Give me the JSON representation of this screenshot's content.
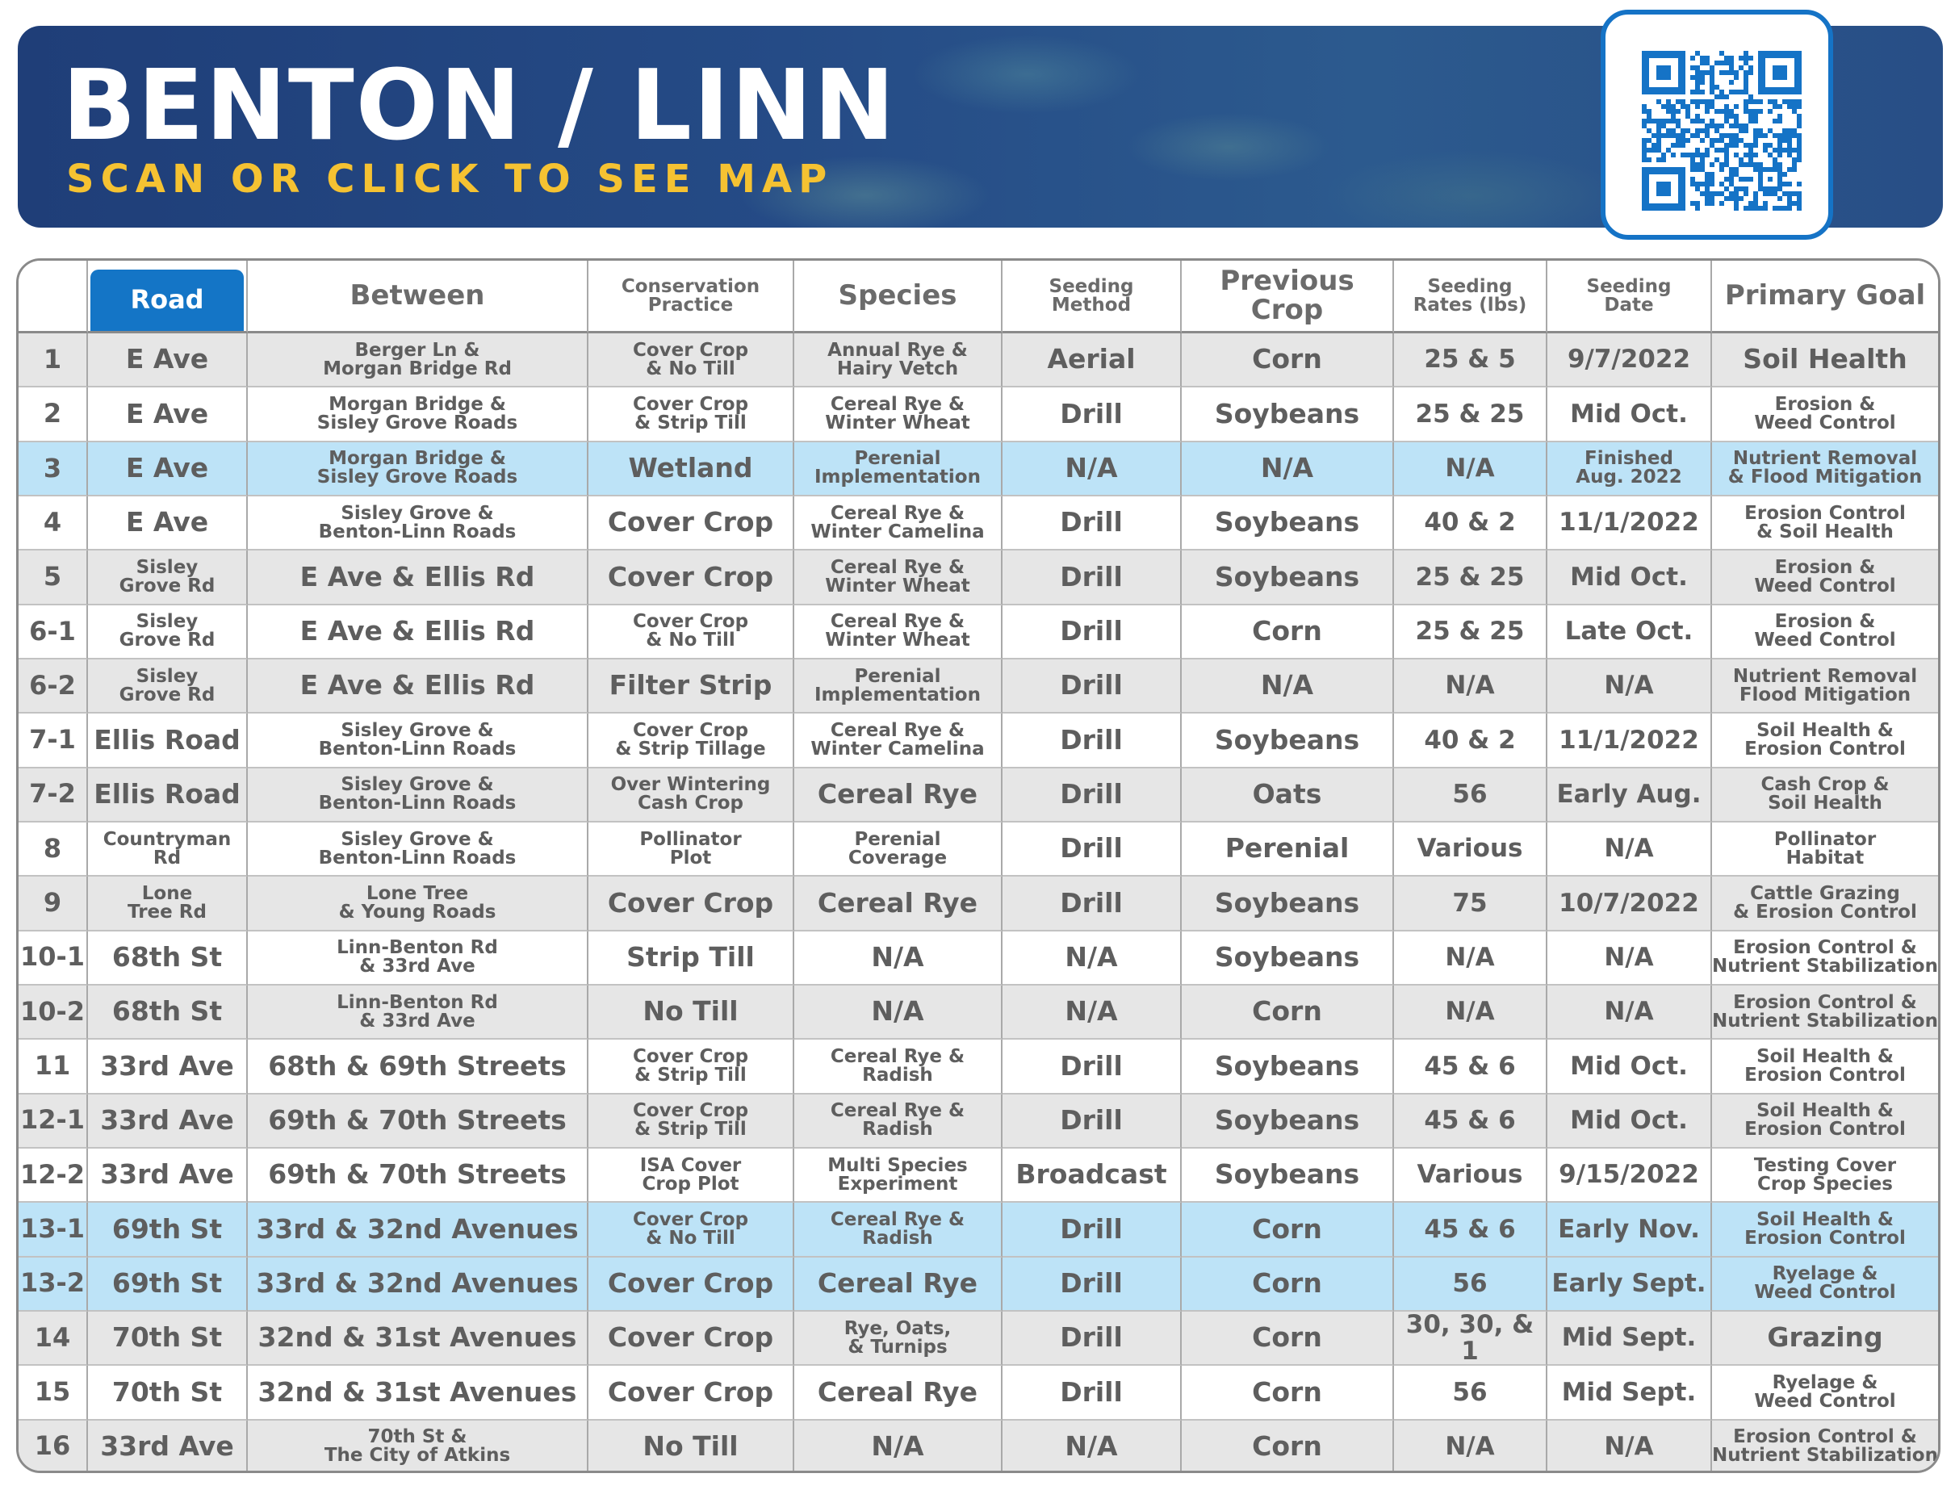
{
  "header": {
    "title": "BENTON / LINN",
    "subtitle": "SCAN OR CLICK TO SEE MAP"
  },
  "qr": {
    "icon": "qr-code-icon",
    "color": "#1573c6"
  },
  "colors": {
    "header_blue": "#1475c6",
    "highlight_row": "#bde3f7",
    "alt_row": "#e6e6e6",
    "text_gray": "#5e5e5e",
    "subtitle_yellow": "#f5c232"
  },
  "table": {
    "columns": [
      "",
      "Road",
      "Between",
      "Conservation\nPractice",
      "Species",
      "Seeding\nMethod",
      "Previous Crop",
      "Seeding\nRates (lbs)",
      "Seeding\nDate",
      "Primary Goal"
    ],
    "rows": [
      {
        "id": "1",
        "road": "E Ave",
        "between": "Berger Ln &\nMorgan Bridge Rd",
        "practice": "Cover Crop\n& No Till",
        "species": "Annual Rye &\nHairy Vetch",
        "method": "Aerial",
        "previous": "Corn",
        "rates": "25 & 5",
        "date": "9/7/2022",
        "goal": "Soil Health"
      },
      {
        "id": "2",
        "road": "E Ave",
        "between": "Morgan Bridge &\nSisley Grove Roads",
        "practice": "Cover Crop\n& Strip Till",
        "species": "Cereal Rye &\nWinter Wheat",
        "method": "Drill",
        "previous": "Soybeans",
        "rates": "25 & 25",
        "date": "Mid Oct.",
        "goal": "Erosion &\nWeed Control"
      },
      {
        "id": "3",
        "road": "E Ave",
        "between": "Morgan Bridge &\nSisley Grove Roads",
        "practice": "Wetland",
        "species": "Perenial\nImplementation",
        "method": "N/A",
        "previous": "N/A",
        "rates": "N/A",
        "date": "Finished\nAug. 2022",
        "goal": "Nutrient Removal\n& Flood Mitigation"
      },
      {
        "id": "4",
        "road": "E Ave",
        "between": "Sisley Grove &\nBenton-Linn Roads",
        "practice": "Cover Crop",
        "species": "Cereal Rye &\nWinter Camelina",
        "method": "Drill",
        "previous": "Soybeans",
        "rates": "40 & 2",
        "date": "11/1/2022",
        "goal": "Erosion Control\n& Soil Health"
      },
      {
        "id": "5",
        "road": "Sisley\nGrove Rd",
        "between": "E Ave & Ellis Rd",
        "practice": "Cover Crop",
        "species": "Cereal Rye &\nWinter Wheat",
        "method": "Drill",
        "previous": "Soybeans",
        "rates": "25 & 25",
        "date": "Mid Oct.",
        "goal": "Erosion &\nWeed Control"
      },
      {
        "id": "6-1",
        "road": "Sisley\nGrove Rd",
        "between": "E Ave & Ellis Rd",
        "practice": "Cover Crop\n& No Till",
        "species": "Cereal Rye &\nWinter Wheat",
        "method": "Drill",
        "previous": "Corn",
        "rates": "25 & 25",
        "date": "Late Oct.",
        "goal": "Erosion &\nWeed Control"
      },
      {
        "id": "6-2",
        "road": "Sisley\nGrove Rd",
        "between": "E Ave & Ellis Rd",
        "practice": "Filter Strip",
        "species": "Perenial\nImplementation",
        "method": "Drill",
        "previous": "N/A",
        "rates": "N/A",
        "date": "N/A",
        "goal": "Nutrient Removal\nFlood Mitigation"
      },
      {
        "id": "7-1",
        "road": "Ellis Road",
        "between": "Sisley Grove &\nBenton-Linn Roads",
        "practice": "Cover Crop\n& Strip Tillage",
        "species": "Cereal Rye &\nWinter Camelina",
        "method": "Drill",
        "previous": "Soybeans",
        "rates": "40 & 2",
        "date": "11/1/2022",
        "goal": "Soil Health &\nErosion Control"
      },
      {
        "id": "7-2",
        "road": "Ellis Road",
        "between": "Sisley Grove &\nBenton-Linn Roads",
        "practice": "Over Wintering\nCash Crop",
        "species": "Cereal Rye",
        "method": "Drill",
        "previous": "Oats",
        "rates": "56",
        "date": "Early Aug.",
        "goal": "Cash Crop &\nSoil Health"
      },
      {
        "id": "8",
        "road": "Countryman\nRd",
        "between": "Sisley Grove &\nBenton-Linn Roads",
        "practice": "Pollinator\nPlot",
        "species": "Perenial\nCoverage",
        "method": "Drill",
        "previous": "Perenial",
        "rates": "Various",
        "date": "N/A",
        "goal": "Pollinator\nHabitat"
      },
      {
        "id": "9",
        "road": "Lone\nTree Rd",
        "between": "Lone Tree\n& Young Roads",
        "practice": "Cover Crop",
        "species": "Cereal Rye",
        "method": "Drill",
        "previous": "Soybeans",
        "rates": "75",
        "date": "10/7/2022",
        "goal": "Cattle Grazing\n& Erosion Control"
      },
      {
        "id": "10-1",
        "road": "68th St",
        "between": "Linn-Benton Rd\n& 33rd Ave",
        "practice": "Strip Till",
        "species": "N/A",
        "method": "N/A",
        "previous": "Soybeans",
        "rates": "N/A",
        "date": "N/A",
        "goal": "Erosion Control &\nNutrient Stabilization"
      },
      {
        "id": "10-2",
        "road": "68th St",
        "between": "Linn-Benton Rd\n& 33rd Ave",
        "practice": "No Till",
        "species": "N/A",
        "method": "N/A",
        "previous": "Corn",
        "rates": "N/A",
        "date": "N/A",
        "goal": "Erosion Control &\nNutrient Stabilization"
      },
      {
        "id": "11",
        "road": "33rd Ave",
        "between": "68th & 69th Streets",
        "practice": "Cover Crop\n& Strip Till",
        "species": "Cereal Rye &\nRadish",
        "method": "Drill",
        "previous": "Soybeans",
        "rates": "45 & 6",
        "date": "Mid Oct.",
        "goal": "Soil Health &\nErosion Control"
      },
      {
        "id": "12-1",
        "road": "33rd Ave",
        "between": "69th & 70th Streets",
        "practice": "Cover Crop\n& Strip Till",
        "species": "Cereal Rye &\nRadish",
        "method": "Drill",
        "previous": "Soybeans",
        "rates": "45 & 6",
        "date": "Mid Oct.",
        "goal": "Soil Health &\nErosion Control"
      },
      {
        "id": "12-2",
        "road": "33rd Ave",
        "between": "69th & 70th Streets",
        "practice": "ISA Cover\nCrop Plot",
        "species": "Multi Species\nExperiment",
        "method": "Broadcast",
        "previous": "Soybeans",
        "rates": "Various",
        "date": "9/15/2022",
        "goal": "Testing Cover\nCrop Species"
      },
      {
        "id": "13-1",
        "road": "69th St",
        "between": "33rd & 32nd Avenues",
        "practice": "Cover Crop\n& No Till",
        "species": "Cereal Rye &\nRadish",
        "method": "Drill",
        "previous": "Corn",
        "rates": "45 & 6",
        "date": "Early Nov.",
        "goal": "Soil Health &\nErosion Control"
      },
      {
        "id": "13-2",
        "road": "69th St",
        "between": "33rd & 32nd Avenues",
        "practice": "Cover Crop",
        "species": "Cereal Rye",
        "method": "Drill",
        "previous": "Corn",
        "rates": "56",
        "date": "Early Sept.",
        "goal": "Ryelage &\nWeed Control"
      },
      {
        "id": "14",
        "road": "70th St",
        "between": "32nd & 31st Avenues",
        "practice": "Cover Crop",
        "species": "Rye, Oats,\n& Turnips",
        "method": "Drill",
        "previous": "Corn",
        "rates": "30, 30, & 1",
        "date": "Mid Sept.",
        "goal": "Grazing"
      },
      {
        "id": "15",
        "road": "70th St",
        "between": "32nd & 31st Avenues",
        "practice": "Cover Crop",
        "species": "Cereal Rye",
        "method": "Drill",
        "previous": "Corn",
        "rates": "56",
        "date": "Mid Sept.",
        "goal": "Ryelage &\nWeed Control"
      },
      {
        "id": "16",
        "road": "33rd Ave",
        "between": "70th St &\nThe City of Atkins",
        "practice": "No Till",
        "species": "N/A",
        "method": "N/A",
        "previous": "Corn",
        "rates": "N/A",
        "date": "N/A",
        "goal": "Erosion Control &\nNutrient Stabilization"
      }
    ]
  }
}
